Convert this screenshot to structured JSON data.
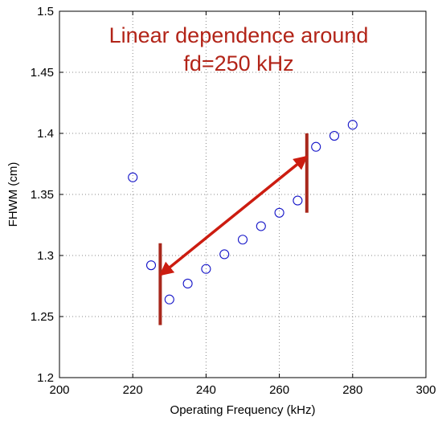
{
  "chart_data": {
    "type": "scatter",
    "xlabel": "Operating Frequency (kHz)",
    "ylabel": "FHWM (cm)",
    "xlim": [
      200,
      300
    ],
    "ylim": [
      1.2,
      1.5
    ],
    "xticks": [
      200,
      220,
      240,
      260,
      280,
      300
    ],
    "yticks": [
      1.2,
      1.25,
      1.3,
      1.35,
      1.4,
      1.45,
      1.5
    ],
    "xtick_labels": [
      "200",
      "220",
      "240",
      "260",
      "280",
      "300"
    ],
    "ytick_labels": [
      "1.2",
      "1.25",
      "1.3",
      "1.35",
      "1.4",
      "1.45",
      "1.5"
    ],
    "grid": true,
    "marker": "circle",
    "marker_color": "#1515c8",
    "points": [
      {
        "x": 220,
        "y": 1.364
      },
      {
        "x": 225,
        "y": 1.292
      },
      {
        "x": 230,
        "y": 1.264
      },
      {
        "x": 235,
        "y": 1.277
      },
      {
        "x": 240,
        "y": 1.289
      },
      {
        "x": 245,
        "y": 1.301
      },
      {
        "x": 250,
        "y": 1.313
      },
      {
        "x": 255,
        "y": 1.324
      },
      {
        "x": 260,
        "y": 1.335
      },
      {
        "x": 265,
        "y": 1.345
      },
      {
        "x": 270,
        "y": 1.389
      },
      {
        "x": 275,
        "y": 1.398
      },
      {
        "x": 280,
        "y": 1.407
      }
    ],
    "annotation": {
      "lines": [
        "Linear dependence around",
        "fd=250 kHz"
      ],
      "color": "#b22418",
      "bars": [
        {
          "x": 227.5,
          "y_from": 1.243,
          "y_to": 1.31
        },
        {
          "x": 267.5,
          "y_from": 1.335,
          "y_to": 1.4
        }
      ],
      "arrow": {
        "from": {
          "x": 227.5,
          "y": 1.284
        },
        "to": {
          "x": 267.5,
          "y": 1.381
        }
      }
    }
  }
}
